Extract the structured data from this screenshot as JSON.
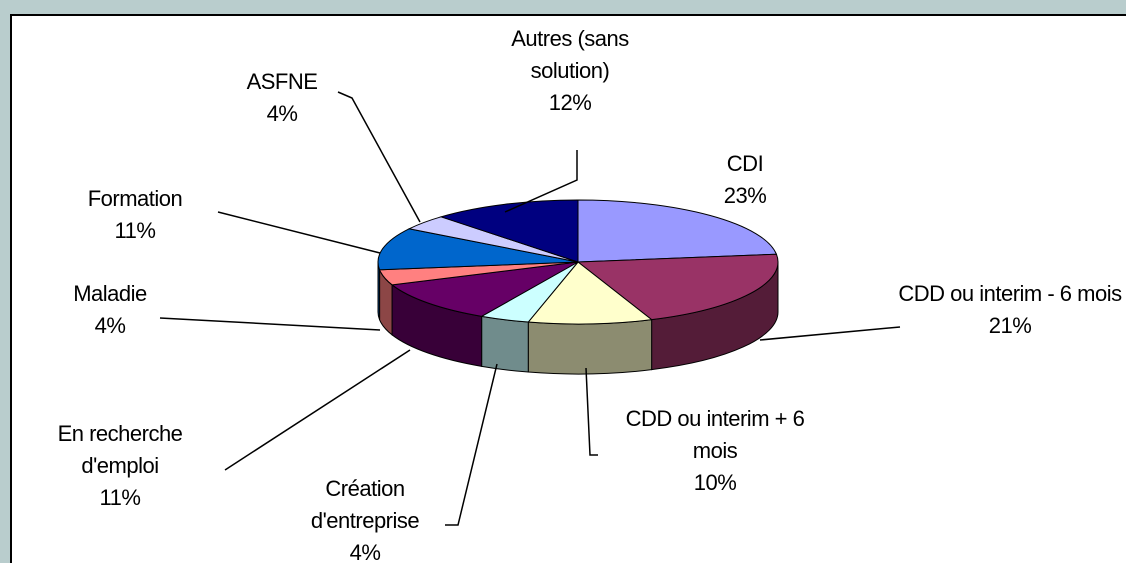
{
  "chart_data": {
    "type": "pie",
    "categories": [
      "CDI",
      "CDD ou interim - 6 mois",
      "CDD ou interim + 6 mois",
      "Création d'entreprise",
      "En recherche d'emploi",
      "Maladie",
      "Formation",
      "ASFNE",
      "Autres (sans solution)"
    ],
    "values": [
      23,
      21,
      10,
      4,
      11,
      4,
      11,
      4,
      12
    ],
    "value_labels": [
      "23%",
      "21%",
      "10%",
      "4%",
      "11%",
      "4%",
      "11%",
      "4%",
      "12%"
    ],
    "colors": [
      "#9999ff",
      "#993366",
      "#ffffcc",
      "#ccffff",
      "#660066",
      "#ff8080",
      "#0066cc",
      "#ccccff",
      "#000080"
    ],
    "three_d": true
  }
}
